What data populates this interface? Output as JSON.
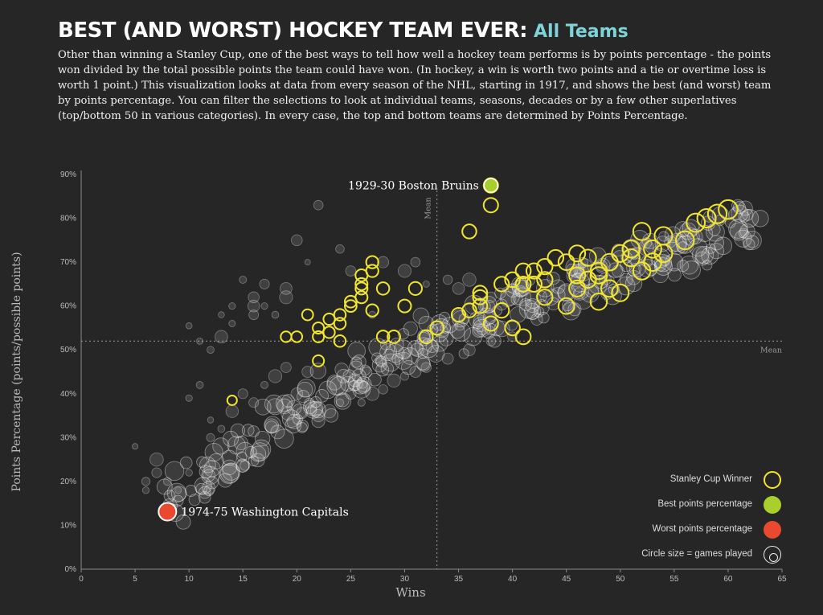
{
  "header": {
    "title": "BEST (AND WORST) HOCKEY TEAM EVER:",
    "filter_label": "All Teams",
    "description": "Other than winning a Stanley Cup, one of the best ways to tell how well a hockey team performs is by points percentage - the points won divided by the total possible points the team could have won. (In hockey, a win is worth two points and a tie or overtime loss is worth 1 point.) This visualization looks at data from every season of the NHL, starting in 1917, and shows the best (and worst) team by points percentage. You can filter the selections to look at individual teams, seasons, decades or by a few other superlatives (top/bottom 50 in various categories). In every case, the top and bottom teams are determined by Points Percentage."
  },
  "colors": {
    "background": "#262626",
    "cup_winner": "#f2e62d",
    "best": "#a8cf2b",
    "worst": "#e8492f",
    "filter_accent": "#7fd3d8"
  },
  "legend": {
    "cup_label": "Stanley Cup Winner",
    "best_label": "Best points percentage",
    "worst_label": "Worst points percentage",
    "size_label": "Circle size = games played"
  },
  "chart_data": {
    "type": "scatter",
    "xlabel": "Wins",
    "ylabel": "Points Percentage (points/possible points)",
    "xlim": [
      0,
      65
    ],
    "ylim": [
      0,
      90
    ],
    "x_ticks": [
      "0",
      "5",
      "10",
      "15",
      "20",
      "25",
      "30",
      "35",
      "40",
      "45",
      "50",
      "55",
      "60",
      "65"
    ],
    "y_ticks": [
      "0%",
      "10%",
      "20%",
      "30%",
      "40%",
      "50%",
      "60%",
      "70%",
      "80%",
      "90%"
    ],
    "mean_x": 33,
    "mean_y": 52,
    "mean_x_label": "Mean",
    "mean_y_label": "Mean",
    "best": {
      "label": "1929-30 Boston Bruins",
      "wins": 38,
      "pct": 87.5
    },
    "worst": {
      "label": "1974-75 Washington Capitals",
      "wins": 8,
      "pct": 13.1
    },
    "cup_winners": [
      [
        14,
        38.5
      ],
      [
        19,
        53
      ],
      [
        20,
        53
      ],
      [
        21,
        58
      ],
      [
        22,
        47.5
      ],
      [
        22,
        53
      ],
      [
        22,
        55
      ],
      [
        23,
        54
      ],
      [
        23,
        57
      ],
      [
        24,
        56
      ],
      [
        24,
        52
      ],
      [
        24,
        58
      ],
      [
        25,
        61
      ],
      [
        25,
        60
      ],
      [
        26,
        64
      ],
      [
        26,
        62
      ],
      [
        26,
        67
      ],
      [
        26,
        65
      ],
      [
        27,
        68
      ],
      [
        27,
        70
      ],
      [
        27,
        59
      ],
      [
        28,
        64
      ],
      [
        28,
        53
      ],
      [
        29,
        53
      ],
      [
        30,
        60
      ],
      [
        31,
        64
      ],
      [
        32,
        53
      ],
      [
        33,
        55
      ],
      [
        35,
        58
      ],
      [
        36,
        77
      ],
      [
        36,
        59
      ],
      [
        37,
        62
      ],
      [
        37,
        60
      ],
      [
        37,
        63
      ],
      [
        38,
        56
      ],
      [
        38,
        87.5
      ],
      [
        38,
        83
      ],
      [
        39,
        59
      ],
      [
        39,
        65
      ],
      [
        40,
        66
      ],
      [
        40,
        55
      ],
      [
        41,
        53
      ],
      [
        41,
        65
      ],
      [
        41,
        68
      ],
      [
        42,
        65
      ],
      [
        42,
        68
      ],
      [
        43,
        69
      ],
      [
        43,
        62
      ],
      [
        43,
        66
      ],
      [
        44,
        71
      ],
      [
        45,
        70
      ],
      [
        45,
        60
      ],
      [
        46,
        64
      ],
      [
        46,
        67
      ],
      [
        46,
        72
      ],
      [
        47,
        71
      ],
      [
        47,
        66
      ],
      [
        48,
        67
      ],
      [
        48,
        61
      ],
      [
        48,
        68
      ],
      [
        49,
        64
      ],
      [
        49,
        70
      ],
      [
        50,
        72
      ],
      [
        50,
        63
      ],
      [
        51,
        71
      ],
      [
        51,
        73
      ],
      [
        52,
        68
      ],
      [
        52,
        77
      ],
      [
        53,
        70
      ],
      [
        53,
        73
      ],
      [
        54,
        76
      ],
      [
        54,
        72
      ],
      [
        56,
        75
      ],
      [
        57,
        79
      ],
      [
        58,
        80
      ],
      [
        59,
        81
      ],
      [
        60,
        82
      ]
    ],
    "point_sets": {
      "trend": [
        [
          9,
          15
        ],
        [
          10,
          18
        ],
        [
          11,
          20
        ],
        [
          12,
          22
        ],
        [
          13,
          24
        ],
        [
          14,
          26
        ],
        [
          15,
          28
        ],
        [
          16,
          29
        ],
        [
          17,
          31
        ],
        [
          18,
          33
        ],
        [
          19,
          34
        ],
        [
          20,
          36
        ],
        [
          21,
          37
        ],
        [
          22,
          39
        ],
        [
          23,
          41
        ],
        [
          24,
          42
        ],
        [
          25,
          43
        ],
        [
          26,
          45
        ],
        [
          27,
          46
        ],
        [
          28,
          47
        ],
        [
          29,
          49
        ],
        [
          30,
          50
        ],
        [
          31,
          51
        ],
        [
          32,
          52
        ],
        [
          33,
          53
        ],
        [
          34,
          54
        ],
        [
          35,
          55
        ],
        [
          36,
          56
        ],
        [
          37,
          57
        ],
        [
          38,
          58
        ],
        [
          39,
          59
        ],
        [
          40,
          60
        ],
        [
          41,
          61
        ],
        [
          42,
          61
        ],
        [
          43,
          62
        ],
        [
          44,
          63
        ],
        [
          45,
          64
        ],
        [
          46,
          65
        ],
        [
          47,
          66
        ],
        [
          48,
          67
        ],
        [
          49,
          68
        ],
        [
          50,
          69
        ],
        [
          51,
          69
        ],
        [
          52,
          70
        ],
        [
          53,
          71
        ],
        [
          54,
          71
        ],
        [
          55,
          72
        ],
        [
          56,
          73
        ],
        [
          57,
          74
        ],
        [
          58,
          75
        ],
        [
          59,
          76
        ],
        [
          60,
          77
        ],
        [
          61,
          78
        ],
        [
          62,
          79
        ]
      ],
      "scatter_upper": [
        [
          10,
          55.5
        ],
        [
          11,
          52
        ],
        [
          12,
          50
        ],
        [
          13,
          58
        ],
        [
          13,
          53
        ],
        [
          14,
          60
        ],
        [
          14,
          56
        ],
        [
          15,
          66
        ],
        [
          16,
          60
        ],
        [
          16,
          62
        ],
        [
          16,
          58
        ],
        [
          17,
          65
        ],
        [
          17,
          60
        ],
        [
          18,
          58
        ],
        [
          19,
          64
        ],
        [
          19,
          62
        ],
        [
          20,
          75
        ],
        [
          21,
          70
        ],
        [
          22,
          83
        ],
        [
          24,
          73
        ],
        [
          25,
          68
        ],
        [
          27,
          58
        ],
        [
          28,
          70
        ],
        [
          30,
          68
        ],
        [
          31,
          70
        ],
        [
          32,
          65
        ],
        [
          34,
          66
        ],
        [
          35,
          64
        ],
        [
          36,
          66
        ],
        [
          38,
          62
        ],
        [
          40,
          64
        ]
      ],
      "scatter_lower": [
        [
          5,
          28
        ],
        [
          6,
          20
        ],
        [
          6,
          18
        ],
        [
          7,
          22
        ],
        [
          7,
          25
        ],
        [
          8,
          20
        ],
        [
          9,
          18
        ],
        [
          10,
          22
        ],
        [
          10,
          39
        ],
        [
          11,
          42
        ],
        [
          12,
          30
        ],
        [
          12,
          34
        ],
        [
          13,
          32
        ],
        [
          14,
          36
        ],
        [
          15,
          40
        ],
        [
          16,
          38
        ],
        [
          17,
          42
        ],
        [
          18,
          44
        ],
        [
          19,
          46
        ],
        [
          20,
          40
        ],
        [
          21,
          45
        ],
        [
          22,
          35
        ],
        [
          23,
          36
        ],
        [
          24,
          38
        ],
        [
          25,
          40
        ],
        [
          26,
          38
        ],
        [
          27,
          40
        ],
        [
          28,
          41
        ],
        [
          29,
          43
        ],
        [
          30,
          44
        ],
        [
          31,
          45
        ],
        [
          32,
          46
        ],
        [
          34,
          48
        ],
        [
          36,
          50
        ],
        [
          38,
          52
        ],
        [
          40,
          53
        ]
      ],
      "outliers": [
        [
          62,
          80
        ],
        [
          61,
          77
        ],
        [
          56,
          74
        ],
        [
          55,
          70
        ],
        [
          54,
          69
        ]
      ]
    }
  }
}
